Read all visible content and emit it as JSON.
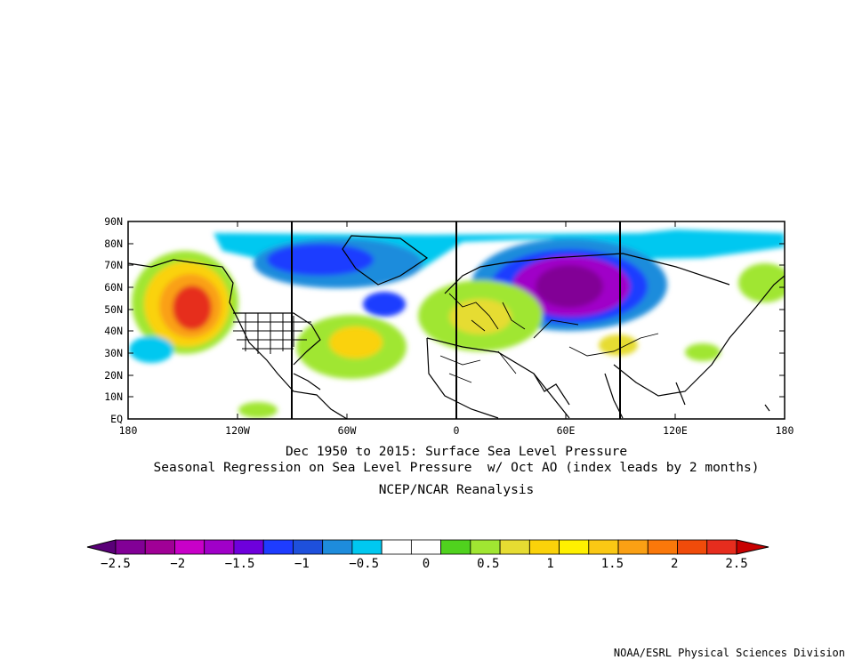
{
  "titles": {
    "line1": "Dec 1950 to 2015: Surface Sea Level Pressure",
    "line2": "Seasonal Regression on Sea Level Pressure  w/ Oct AO (index leads by 2 months)",
    "line3": "NCEP/NCAR Reanalysis"
  },
  "map": {
    "lat_labels": [
      "90N",
      "80N",
      "70N",
      "60N",
      "50N",
      "40N",
      "30N",
      "20N",
      "10N",
      "EQ"
    ],
    "lon_labels": [
      "180",
      "120W",
      "60W",
      "0",
      "60E",
      "120E",
      "180"
    ]
  },
  "colorbar": {
    "colors": [
      "#820096",
      "#a00096",
      "#c800c8",
      "#a000c8",
      "#6e00dc",
      "#1e3cff",
      "#1e50dc",
      "#1e8cdc",
      "#00c8f0",
      "#ffffff",
      "#ffffff",
      "#50d21e",
      "#a0e632",
      "#e6dc32",
      "#fad20a",
      "#fff000",
      "#fac814",
      "#faa014",
      "#fa780a",
      "#f04b0a",
      "#e62d1e"
    ],
    "underflow_color": "#5a0078",
    "overflow_color": "#c80000",
    "labels": [
      "−2.5",
      "−2",
      "−1.5",
      "−1",
      "−0.5",
      "0",
      "0.5",
      "1",
      "1.5",
      "2",
      "2.5"
    ]
  },
  "credit": "NOAA/ESRL Physical Sciences Division"
}
